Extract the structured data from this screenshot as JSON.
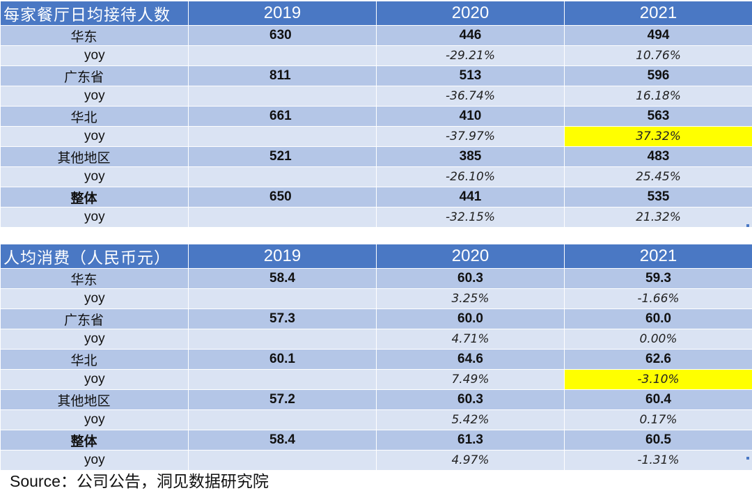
{
  "table1": {
    "title": "每家餐厅日均接待人数",
    "years": [
      "2019",
      "2020",
      "2021"
    ],
    "rows": [
      {
        "region": "华东",
        "v2019": "630",
        "v2020": "446",
        "v2021": "494",
        "yoy_label": "yoy",
        "yoy2020": "-29.21%",
        "yoy2021": "10.76%"
      },
      {
        "region": "广东省",
        "v2019": "811",
        "v2020": "513",
        "v2021": "596",
        "yoy_label": "yoy",
        "yoy2020": "-36.74%",
        "yoy2021": "16.18%"
      },
      {
        "region": "华北",
        "v2019": "661",
        "v2020": "410",
        "v2021": "563",
        "yoy_label": "yoy",
        "yoy2020": "-37.97%",
        "yoy2021": "37.32%"
      },
      {
        "region": "其他地区",
        "v2019": "521",
        "v2020": "385",
        "v2021": "483",
        "yoy_label": "yoy",
        "yoy2020": "-26.10%",
        "yoy2021": "25.45%"
      },
      {
        "region": "整体",
        "v2019": "650",
        "v2020": "441",
        "v2021": "535",
        "yoy_label": "yoy",
        "yoy2020": "-32.15%",
        "yoy2021": "21.32%"
      }
    ]
  },
  "table2": {
    "title": "人均消费（人民币元）",
    "years": [
      "2019",
      "2020",
      "2021"
    ],
    "rows": [
      {
        "region": "华东",
        "v2019": "58.4",
        "v2020": "60.3",
        "v2021": "59.3",
        "yoy_label": "yoy",
        "yoy2020": "3.25%",
        "yoy2021": "-1.66%"
      },
      {
        "region": "广东省",
        "v2019": "57.3",
        "v2020": "60.0",
        "v2021": "60.0",
        "yoy_label": "yoy",
        "yoy2020": "4.71%",
        "yoy2021": "0.00%"
      },
      {
        "region": "华北",
        "v2019": "60.1",
        "v2020": "64.6",
        "v2021": "62.6",
        "yoy_label": "yoy",
        "yoy2020": "7.49%",
        "yoy2021": "-3.10%"
      },
      {
        "region": "其他地区",
        "v2019": "57.2",
        "v2020": "60.3",
        "v2021": "60.4",
        "yoy_label": "yoy",
        "yoy2020": "5.42%",
        "yoy2021": "0.17%"
      },
      {
        "region": "整体",
        "v2019": "58.4",
        "v2020": "61.3",
        "v2021": "60.5",
        "yoy_label": "yoy",
        "yoy2020": "4.97%",
        "yoy2021": "-1.31%"
      }
    ]
  },
  "highlight_color": "#ffff00",
  "header_color": "#4a78c4",
  "source": "Source：公司公告，洞见数据研究院"
}
